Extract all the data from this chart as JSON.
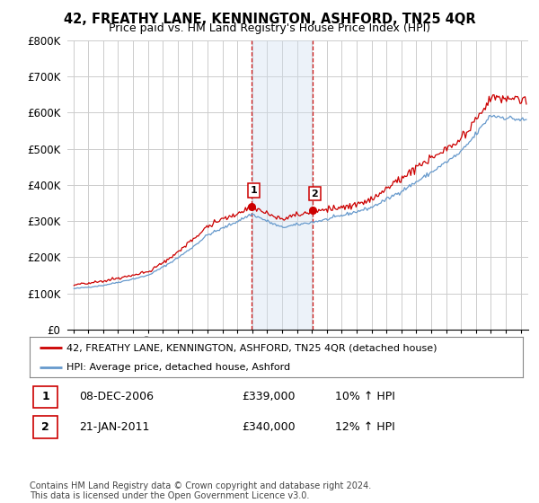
{
  "title": "42, FREATHY LANE, KENNINGTON, ASHFORD, TN25 4QR",
  "subtitle": "Price paid vs. HM Land Registry's House Price Index (HPI)",
  "legend_entry1": "42, FREATHY LANE, KENNINGTON, ASHFORD, TN25 4QR (detached house)",
  "legend_entry2": "HPI: Average price, detached house, Ashford",
  "sale1_label": "1",
  "sale2_label": "2",
  "sale1_date": "08-DEC-2006",
  "sale1_price": "£339,000",
  "sale1_hpi": "10% ↑ HPI",
  "sale2_date": "21-JAN-2011",
  "sale2_price": "£340,000",
  "sale2_hpi": "12% ↑ HPI",
  "footnote_line1": "Contains HM Land Registry data © Crown copyright and database right 2024.",
  "footnote_line2": "This data is licensed under the Open Government Licence v3.0.",
  "line1_color": "#cc0000",
  "line2_color": "#6699cc",
  "shading_color": "#d0e0f0",
  "vline_color": "#cc0000",
  "marker_color": "#cc0000",
  "ylim": [
    0,
    800000
  ],
  "yticks": [
    0,
    100000,
    200000,
    300000,
    400000,
    500000,
    600000,
    700000,
    800000
  ],
  "ytick_labels": [
    "£0",
    "£100K",
    "£200K",
    "£300K",
    "£400K",
    "£500K",
    "£600K",
    "£700K",
    "£800K"
  ],
  "year_start": 1995,
  "year_end": 2025,
  "sale1_year": 2006.92,
  "sale2_year": 2011.05,
  "background_color": "#ffffff",
  "grid_color": "#cccccc",
  "title_fontsize": 10.5,
  "subtitle_fontsize": 9
}
